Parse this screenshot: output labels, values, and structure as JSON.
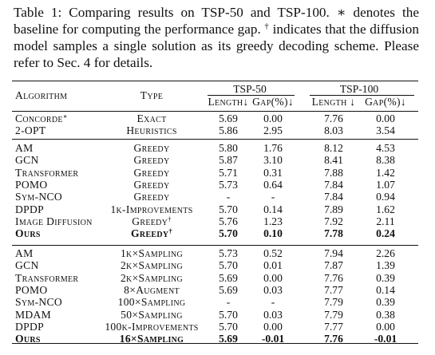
{
  "caption": {
    "p1": "Table 1: Comparing results on TSP-50 and TSP-100. ",
    "star": "∗",
    "p2": " denotes the baseline for computing the performance gap. ",
    "dagger": "†",
    "p3": " indicates that the diffusion model samples a single solution as its greedy decoding scheme. Please refer to Sec. 4 for details."
  },
  "header": {
    "algorithm": "Algorithm",
    "type": "Type",
    "tsp50": "TSP-50",
    "tsp100": "TSP-100",
    "length": "Length↓",
    "gap": "Gap(%)↓",
    "length2": "Length ↓",
    "gap2": "Gap(%)↓"
  },
  "groups": [
    [
      {
        "alg": "Concorde",
        "alg_sup": "∗",
        "type": "Exact",
        "type_sup": "",
        "l50": "5.69",
        "g50": "0.00",
        "l100": "7.76",
        "g100": "0.00"
      },
      {
        "alg": "2-OPT",
        "alg_sup": "",
        "type": "Heuristics",
        "type_sup": "",
        "l50": "5.86",
        "g50": "2.95",
        "l100": "8.03",
        "g100": "3.54"
      }
    ],
    [
      {
        "alg": "AM",
        "alg_sup": "",
        "type": "Greedy",
        "type_sup": "",
        "l50": "5.80",
        "g50": "1.76",
        "l100": "8.12",
        "g100": "4.53"
      },
      {
        "alg": "GCN",
        "alg_sup": "",
        "type": "Greedy",
        "type_sup": "",
        "l50": "5.87",
        "g50": "3.10",
        "l100": "8.41",
        "g100": "8.38"
      },
      {
        "alg": "Transformer",
        "alg_sup": "",
        "type": "Greedy",
        "type_sup": "",
        "l50": "5.71",
        "g50": "0.31",
        "l100": "7.88",
        "g100": "1.42"
      },
      {
        "alg": "POMO",
        "alg_sup": "",
        "type": "Greedy",
        "type_sup": "",
        "l50": "5.73",
        "g50": "0.64",
        "l100": "7.84",
        "g100": "1.07"
      },
      {
        "alg": "Sym-NCO",
        "alg_sup": "",
        "type": "Greedy",
        "type_sup": "",
        "l50": "-",
        "g50": "-",
        "l100": "7.84",
        "g100": "0.94"
      },
      {
        "alg": "DPDP",
        "alg_sup": "",
        "type": "1k-Improvements",
        "type_sup": "",
        "l50": "5.70",
        "g50": "0.14",
        "l100": "7.89",
        "g100": "1.62"
      },
      {
        "alg": "Image Diffusion",
        "alg_sup": "",
        "type": "Greedy",
        "type_sup": "†",
        "l50": "5.76",
        "g50": "1.23",
        "l100": "7.92",
        "g100": "2.11"
      },
      {
        "alg": "Ours",
        "alg_sup": "",
        "type": "Greedy",
        "type_sup": "†",
        "l50": "5.70",
        "g50": "0.10",
        "l100": "7.78",
        "g100": "0.24",
        "bold": true
      }
    ],
    [
      {
        "alg": "AM",
        "alg_sup": "",
        "type": "1k×Sampling",
        "type_sup": "",
        "l50": "5.73",
        "g50": "0.52",
        "l100": "7.94",
        "g100": "2.26"
      },
      {
        "alg": "GCN",
        "alg_sup": "",
        "type": "2k×Sampling",
        "type_sup": "",
        "l50": "5.70",
        "g50": "0.01",
        "l100": "7.87",
        "g100": "1.39"
      },
      {
        "alg": "Transformer",
        "alg_sup": "",
        "type": "2k×Sampling",
        "type_sup": "",
        "l50": "5.69",
        "g50": "0.00",
        "l100": "7.76",
        "g100": "0.39"
      },
      {
        "alg": "POMO",
        "alg_sup": "",
        "type": "8×Augment",
        "type_sup": "",
        "l50": "5.69",
        "g50": "0.03",
        "l100": "7.77",
        "g100": "0.14"
      },
      {
        "alg": "Sym-NCO",
        "alg_sup": "",
        "type": "100×Sampling",
        "type_sup": "",
        "l50": "-",
        "g50": "-",
        "l100": "7.79",
        "g100": "0.39"
      },
      {
        "alg": "MDAM",
        "alg_sup": "",
        "type": "50×Sampling",
        "type_sup": "",
        "l50": "5.70",
        "g50": "0.03",
        "l100": "7.79",
        "g100": "0.38"
      },
      {
        "alg": "DPDP",
        "alg_sup": "",
        "type": "100k-Improvements",
        "type_sup": "",
        "l50": "5.70",
        "g50": "0.00",
        "l100": "7.77",
        "g100": "0.00"
      },
      {
        "alg": "Ours",
        "alg_sup": "",
        "type": "16×Sampling",
        "type_sup": "",
        "l50": "5.69",
        "g50": "-0.01",
        "l100": "7.76",
        "g100": "-0.01",
        "bold": true
      }
    ]
  ]
}
